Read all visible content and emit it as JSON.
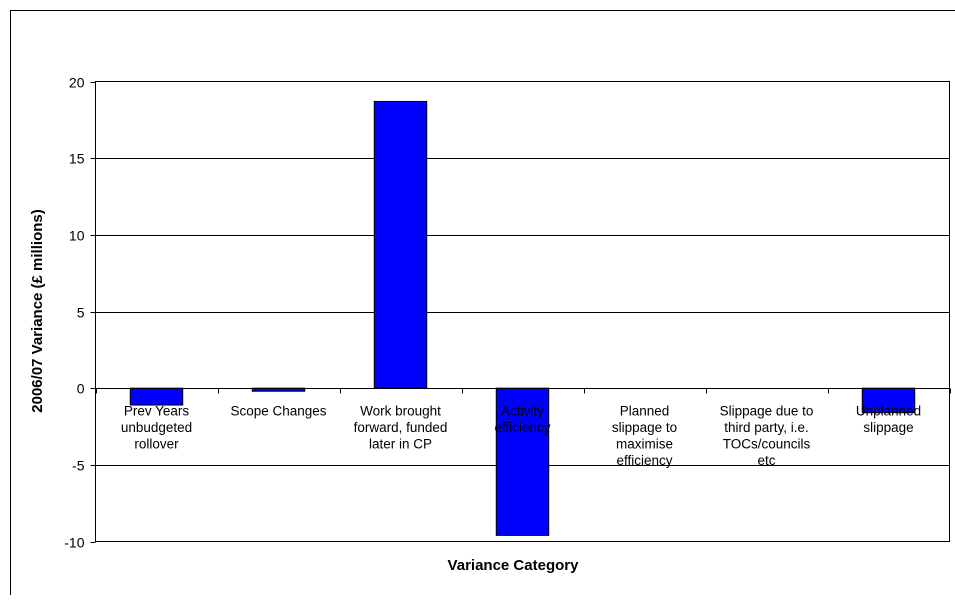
{
  "chart_data": {
    "type": "bar",
    "title": "",
    "xlabel": "Variance Category",
    "ylabel": "2006/07 Variance (£ millions)",
    "ylim": [
      -10,
      20
    ],
    "yticks": [
      20,
      15,
      10,
      5,
      0,
      -5,
      -10
    ],
    "grid": true,
    "legend": "none",
    "categories": [
      [
        "Prev Years",
        "unbudgeted",
        "rollover"
      ],
      [
        "Scope Changes"
      ],
      [
        "Work brought",
        "forward, funded",
        "later in CP"
      ],
      [
        "Activity",
        "efficiency"
      ],
      [
        "Planned",
        "slippage to",
        "maximise",
        "efficiency"
      ],
      [
        "Slippage due to",
        "third party, i.e.",
        "TOCs/councils",
        "etc"
      ],
      [
        "Unplanned",
        "slippage"
      ]
    ],
    "values": [
      -1.1,
      -0.2,
      18.7,
      -9.6,
      0,
      0,
      -1.6
    ],
    "colors": {
      "bar": "#0000ff",
      "bar_outline": "#000000",
      "grid": "#000000",
      "background": "#ffffff"
    }
  }
}
